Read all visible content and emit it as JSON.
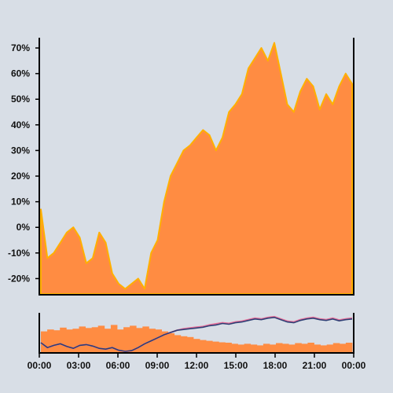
{
  "chart_data": [
    {
      "type": "area",
      "ylim": [
        -26,
        74
      ],
      "xlim": [
        0,
        24
      ],
      "y_ticks": [
        "70%",
        "60%",
        "50%",
        "40%",
        "30%",
        "20%",
        "10%",
        "0%",
        "-10%",
        "-20%"
      ],
      "y_tick_values": [
        70,
        60,
        50,
        40,
        30,
        20,
        10,
        0,
        -10,
        -20
      ],
      "grid": false,
      "colors": {
        "fill": "#ff8c42",
        "edge": "#ffb000"
      },
      "series": [
        {
          "x": [
            0,
            0.5,
            1,
            1.5,
            2,
            2.5,
            3,
            3.5,
            4,
            4.5,
            5,
            5.5,
            6,
            6.5,
            7,
            7.5,
            8,
            8.5,
            9,
            9.5,
            10,
            10.5,
            11,
            11.5,
            12,
            12.5,
            13,
            13.5,
            14,
            14.5,
            15,
            15.5,
            16,
            16.5,
            17,
            17.5,
            18,
            18.5,
            19,
            19.5,
            20,
            20.5,
            21,
            21.5,
            22,
            22.5,
            23,
            23.5,
            24
          ],
          "values": [
            7,
            -12,
            -10,
            -6,
            -2,
            0,
            -4,
            -14,
            -12,
            -2,
            -6,
            -18,
            -22,
            -24,
            -22,
            -20,
            -24,
            -10,
            -5,
            10,
            20,
            25,
            30,
            32,
            35,
            38,
            36,
            30,
            35,
            45,
            48,
            52,
            62,
            66,
            70,
            65,
            72,
            60,
            48,
            45,
            53,
            58,
            55,
            46,
            52,
            48,
            55,
            60,
            56
          ]
        }
      ]
    },
    {
      "type": "bar",
      "xlim": [
        0,
        24
      ],
      "x_ticks": [
        "00:00",
        "03:00",
        "06:00",
        "09:00",
        "12:00",
        "15:00",
        "18:00",
        "21:00",
        "00:00"
      ],
      "grid": false,
      "colors": {
        "bars": "#ff8c42",
        "line_pink": "#e8709a",
        "line_navy": "#2e3f75"
      },
      "bar_values": [
        0.55,
        0.6,
        0.58,
        0.65,
        0.6,
        0.62,
        0.68,
        0.64,
        0.66,
        0.7,
        0.62,
        0.72,
        0.6,
        0.66,
        0.7,
        0.64,
        0.68,
        0.62,
        0.6,
        0.55,
        0.5,
        0.45,
        0.42,
        0.4,
        0.35,
        0.32,
        0.3,
        0.28,
        0.26,
        0.25,
        0.22,
        0.2,
        0.22,
        0.2,
        0.18,
        0.22,
        0.2,
        0.24,
        0.22,
        0.2,
        0.24,
        0.22,
        0.25,
        0.2,
        0.18,
        0.2,
        0.24,
        0.22,
        0.25
      ],
      "series": [
        {
          "values": [
            0.25,
            0.12,
            0.18,
            0.22,
            0.15,
            0.1,
            0.18,
            0.2,
            0.16,
            0.1,
            0.08,
            0.12,
            0.05,
            0.02,
            0.04,
            0.12,
            0.22,
            0.3,
            0.38,
            0.46,
            0.52,
            0.58,
            0.62,
            0.64,
            0.66,
            0.68,
            0.72,
            0.75,
            0.78,
            0.76,
            0.8,
            0.82,
            0.86,
            0.9,
            0.88,
            0.92,
            0.94,
            0.88,
            0.82,
            0.8,
            0.86,
            0.9,
            0.92,
            0.88,
            0.86,
            0.9,
            0.85,
            0.88,
            0.9
          ]
        },
        {
          "values": [
            0.25,
            0.12,
            0.18,
            0.22,
            0.15,
            0.1,
            0.18,
            0.2,
            0.16,
            0.1,
            0.08,
            0.12,
            0.05,
            0.02,
            0.04,
            0.12,
            0.22,
            0.3,
            0.38,
            0.46,
            0.52,
            0.58,
            0.6,
            0.62,
            0.64,
            0.66,
            0.7,
            0.72,
            0.76,
            0.74,
            0.78,
            0.8,
            0.84,
            0.88,
            0.86,
            0.9,
            0.92,
            0.86,
            0.8,
            0.78,
            0.84,
            0.88,
            0.9,
            0.86,
            0.84,
            0.88,
            0.83,
            0.86,
            0.88
          ]
        }
      ]
    }
  ]
}
